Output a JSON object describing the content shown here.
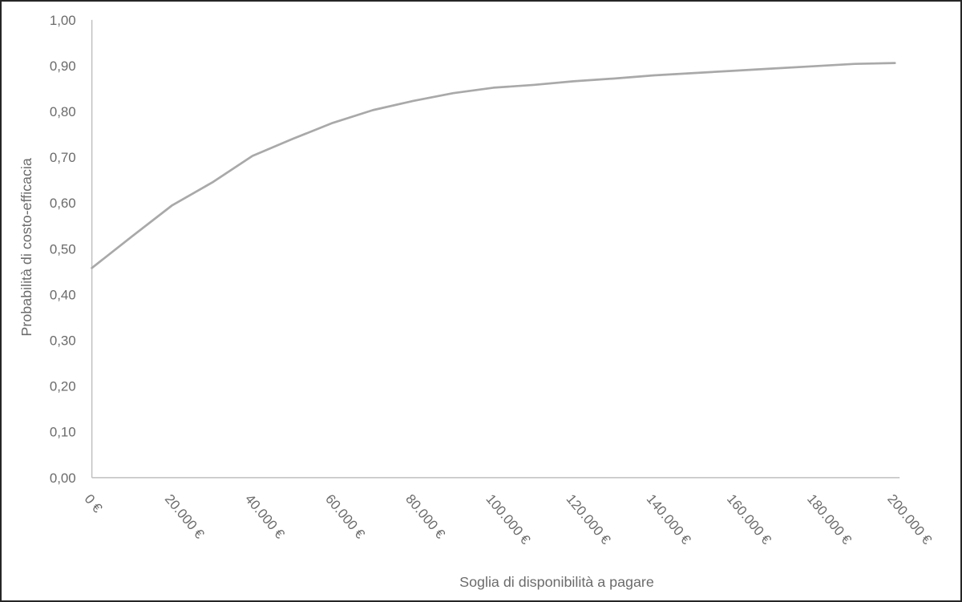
{
  "chart_data": {
    "type": "line",
    "title": "",
    "xlabel": "Soglia di disponibilità a pagare",
    "ylabel": "Probabilità di costo-efficacia",
    "xlim": [
      0,
      200000
    ],
    "ylim": [
      0,
      1
    ],
    "grid": false,
    "legend": "none",
    "x_ticks": [
      0,
      20000,
      40000,
      60000,
      80000,
      100000,
      120000,
      140000,
      160000,
      180000,
      200000
    ],
    "x_tick_labels": [
      "0 €",
      "20.000 €",
      "40.000 €",
      "60.000 €",
      "80.000 €",
      "100.000 €",
      "120.000 €",
      "140.000 €",
      "160.000 €",
      "180.000 €",
      "200.000 €"
    ],
    "y_ticks": [
      0,
      0.1,
      0.2,
      0.3,
      0.4,
      0.5,
      0.6,
      0.7,
      0.8,
      0.9,
      1.0
    ],
    "y_tick_labels": [
      "0,00",
      "0,10",
      "0,20",
      "0,30",
      "0,40",
      "0,50",
      "0,60",
      "0,70",
      "0,80",
      "0,90",
      "1,00"
    ],
    "series": [
      {
        "name": "Probabilità di costo-efficacia",
        "color": "#a9a9a9",
        "x": [
          0,
          10000,
          20000,
          30000,
          40000,
          50000,
          60000,
          70000,
          80000,
          90000,
          100000,
          110000,
          120000,
          130000,
          140000,
          150000,
          160000,
          170000,
          180000,
          190000,
          200000
        ],
        "y": [
          0.458,
          0.527,
          0.595,
          0.645,
          0.703,
          0.74,
          0.775,
          0.803,
          0.823,
          0.84,
          0.852,
          0.858,
          0.866,
          0.872,
          0.879,
          0.884,
          0.889,
          0.894,
          0.899,
          0.904,
          0.906
        ]
      }
    ]
  },
  "style": {
    "text_color": "#6b6b6b",
    "axis_color": "#bfbfbf",
    "curve_color": "#a9a9a9",
    "curve_width": 2.75,
    "axis_width": 1.5,
    "tick_font_size": 17,
    "title_font_size": 18,
    "x_tick_angle": 50,
    "frame_border_color": "#262626",
    "background": "#ffffff"
  }
}
